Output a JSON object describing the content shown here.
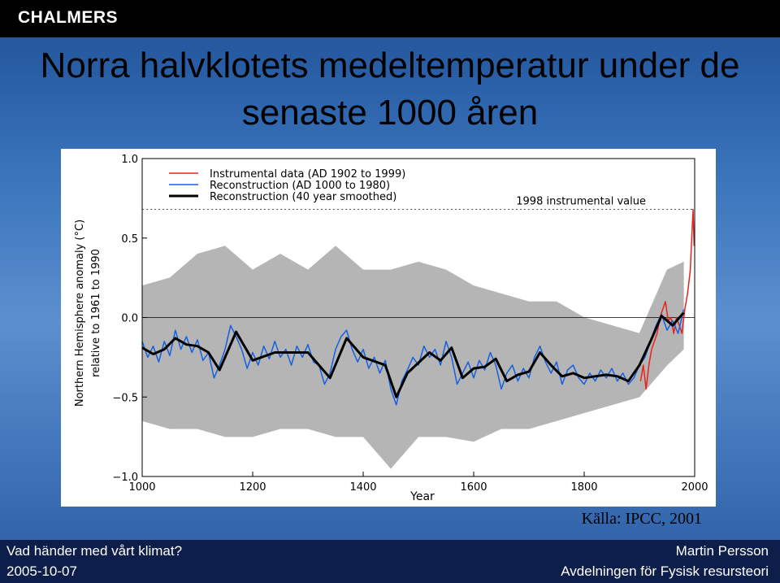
{
  "header": {
    "logo": "CHALMERS"
  },
  "slide": {
    "title_lines": [
      "Norra halvklotets medeltemperatur under de",
      "senaste 1000 åren"
    ],
    "source": "Källa: IPCC, 2001"
  },
  "footer": {
    "left_top": "Vad händer med vårt klimat?",
    "left_bottom": "2005-10-07",
    "right_top": "Martin Persson",
    "right_bottom": "Avdelningen för Fysisk resursteori"
  },
  "chart_data": {
    "type": "line",
    "x_label": "Year",
    "y_label_lines": [
      "Northern Hemisphere anomaly (°C)",
      "relative to 1961 to 1990"
    ],
    "xlim": [
      1000,
      2000
    ],
    "xticks": [
      1000,
      1200,
      1400,
      1600,
      1800,
      2000
    ],
    "ylim": [
      -1,
      1
    ],
    "yticks": [
      {
        "value": -1,
        "label": "−1.0"
      },
      {
        "value": -0.5,
        "label": "−0.5"
      },
      {
        "value": 0,
        "label": "0.0"
      },
      {
        "value": 0.5,
        "label": "0.5"
      },
      {
        "value": 1,
        "label": "1.0"
      }
    ],
    "zero_line": true,
    "reference": {
      "label": "1998 instrumental value",
      "value": 0.68
    },
    "band": {
      "color": "#b5b5b5",
      "x": [
        1000,
        1050,
        1100,
        1150,
        1200,
        1250,
        1300,
        1350,
        1400,
        1450,
        1500,
        1550,
        1600,
        1650,
        1700,
        1750,
        1800,
        1850,
        1900,
        1950,
        1980
      ],
      "lower": [
        -0.65,
        -0.7,
        -0.7,
        -0.75,
        -0.75,
        -0.7,
        -0.7,
        -0.75,
        -0.75,
        -0.95,
        -0.75,
        -0.75,
        -0.78,
        -0.7,
        -0.7,
        -0.65,
        -0.6,
        -0.55,
        -0.5,
        -0.3,
        -0.2
      ],
      "upper": [
        0.2,
        0.25,
        0.4,
        0.45,
        0.3,
        0.4,
        0.3,
        0.45,
        0.3,
        0.3,
        0.35,
        0.3,
        0.2,
        0.15,
        0.1,
        0.1,
        0.0,
        -0.05,
        -0.1,
        0.3,
        0.35
      ]
    },
    "series": [
      {
        "name": "Instrumental data (AD 1902 to 1999)",
        "color": "#e8231e",
        "width": 1.5,
        "x": [
          1902,
          1907,
          1912,
          1917,
          1922,
          1927,
          1932,
          1937,
          1942,
          1947,
          1952,
          1957,
          1962,
          1967,
          1972,
          1977,
          1982,
          1987,
          1992,
          1997,
          1999
        ],
        "values": [
          -0.4,
          -0.3,
          -0.45,
          -0.3,
          -0.2,
          -0.15,
          -0.1,
          0.0,
          0.05,
          0.1,
          -0.02,
          0.0,
          -0.1,
          0.0,
          -0.05,
          -0.1,
          0.05,
          0.15,
          0.3,
          0.68,
          0.45
        ]
      },
      {
        "name": "Reconstruction (AD 1000 to 1980)",
        "color": "#1560e0",
        "width": 1.5,
        "x": [
          1000,
          1010,
          1020,
          1030,
          1040,
          1050,
          1060,
          1070,
          1080,
          1090,
          1100,
          1110,
          1120,
          1130,
          1140,
          1150,
          1160,
          1170,
          1180,
          1190,
          1200,
          1210,
          1220,
          1230,
          1240,
          1250,
          1260,
          1270,
          1280,
          1290,
          1300,
          1310,
          1320,
          1330,
          1340,
          1350,
          1360,
          1370,
          1380,
          1390,
          1400,
          1410,
          1420,
          1430,
          1440,
          1450,
          1460,
          1470,
          1480,
          1490,
          1500,
          1510,
          1520,
          1530,
          1540,
          1550,
          1560,
          1570,
          1580,
          1590,
          1600,
          1610,
          1620,
          1630,
          1640,
          1650,
          1660,
          1670,
          1680,
          1690,
          1700,
          1710,
          1720,
          1730,
          1740,
          1750,
          1760,
          1770,
          1780,
          1790,
          1800,
          1810,
          1820,
          1830,
          1840,
          1850,
          1860,
          1870,
          1880,
          1890,
          1900,
          1910,
          1920,
          1930,
          1940,
          1950,
          1960,
          1970,
          1980
        ],
        "values": [
          -0.15,
          -0.25,
          -0.18,
          -0.28,
          -0.15,
          -0.24,
          -0.08,
          -0.2,
          -0.12,
          -0.22,
          -0.14,
          -0.27,
          -0.22,
          -0.38,
          -0.3,
          -0.2,
          -0.05,
          -0.12,
          -0.2,
          -0.32,
          -0.22,
          -0.3,
          -0.18,
          -0.26,
          -0.15,
          -0.25,
          -0.2,
          -0.3,
          -0.18,
          -0.25,
          -0.17,
          -0.28,
          -0.3,
          -0.42,
          -0.35,
          -0.2,
          -0.12,
          -0.08,
          -0.2,
          -0.28,
          -0.2,
          -0.32,
          -0.25,
          -0.35,
          -0.27,
          -0.45,
          -0.55,
          -0.4,
          -0.33,
          -0.25,
          -0.3,
          -0.18,
          -0.25,
          -0.2,
          -0.3,
          -0.15,
          -0.25,
          -0.42,
          -0.35,
          -0.28,
          -0.38,
          -0.27,
          -0.33,
          -0.22,
          -0.3,
          -0.45,
          -0.35,
          -0.3,
          -0.4,
          -0.32,
          -0.38,
          -0.25,
          -0.18,
          -0.28,
          -0.35,
          -0.28,
          -0.42,
          -0.33,
          -0.3,
          -0.38,
          -0.42,
          -0.35,
          -0.4,
          -0.33,
          -0.38,
          -0.32,
          -0.4,
          -0.35,
          -0.42,
          -0.38,
          -0.3,
          -0.25,
          -0.15,
          -0.05,
          0.02,
          -0.08,
          -0.02,
          -0.1,
          0.05
        ]
      },
      {
        "name": "Reconstruction (40 year smoothed)",
        "color": "#000000",
        "width": 3,
        "x": [
          1000,
          1020,
          1040,
          1060,
          1080,
          1100,
          1120,
          1140,
          1170,
          1200,
          1240,
          1300,
          1340,
          1370,
          1400,
          1440,
          1460,
          1480,
          1520,
          1540,
          1560,
          1580,
          1600,
          1620,
          1640,
          1660,
          1680,
          1700,
          1720,
          1740,
          1760,
          1780,
          1800,
          1820,
          1840,
          1860,
          1880,
          1900,
          1920,
          1940,
          1960,
          1980
        ],
        "values": [
          -0.19,
          -0.23,
          -0.2,
          -0.13,
          -0.17,
          -0.18,
          -0.22,
          -0.33,
          -0.09,
          -0.27,
          -0.22,
          -0.22,
          -0.38,
          -0.13,
          -0.25,
          -0.3,
          -0.5,
          -0.35,
          -0.22,
          -0.27,
          -0.19,
          -0.38,
          -0.32,
          -0.31,
          -0.26,
          -0.4,
          -0.36,
          -0.34,
          -0.22,
          -0.3,
          -0.37,
          -0.35,
          -0.38,
          -0.37,
          -0.36,
          -0.37,
          -0.4,
          -0.3,
          -0.15,
          0.01,
          -0.05,
          0.03
        ]
      }
    ]
  }
}
